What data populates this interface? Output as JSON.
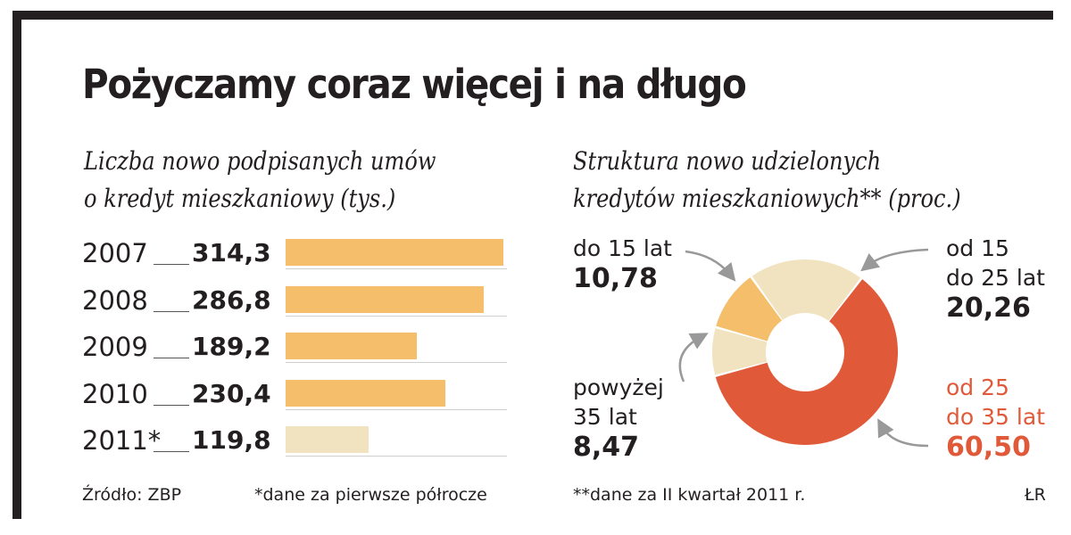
{
  "title": "Pożyczamy coraz więcej i na długo",
  "chart_data": [
    {
      "type": "bar",
      "orientation": "horizontal",
      "subtitle_lines": [
        "Liczba nowo podpisanych umów",
        "o kredyt mieszkaniowy (tys.)"
      ],
      "categories": [
        "2007",
        "2008",
        "2009",
        "2010",
        "2011*"
      ],
      "values": [
        314.3,
        286.8,
        189.2,
        230.4,
        119.8
      ],
      "value_labels": [
        "314,3",
        "286,8",
        "189,2",
        "230,4",
        "119,8"
      ],
      "xlim": [
        0,
        320
      ],
      "colors": [
        "#f4be6a",
        "#f4be6a",
        "#f4be6a",
        "#f4be6a",
        "#f1e3c0"
      ]
    },
    {
      "type": "pie",
      "style": "donut",
      "subtitle_lines": [
        "Struktura nowo udzielonych",
        "kredytów mieszkaniowych** (proc.)"
      ],
      "slices": [
        {
          "label_lines": [
            "do 15 lat"
          ],
          "value": 10.78,
          "value_label": "10,78",
          "color": "#f4be6a"
        },
        {
          "label_lines": [
            "od 15",
            "do 25 lat"
          ],
          "value": 20.26,
          "value_label": "20,26",
          "color": "#f1e3c0"
        },
        {
          "label_lines": [
            "od 25",
            "do 35 lat"
          ],
          "value": 60.5,
          "value_label": "60,50",
          "color": "#e05a3a"
        },
        {
          "label_lines": [
            "powyżej",
            "35 lat"
          ],
          "value": 8.47,
          "value_label": "8,47",
          "color": "#f1e3c0"
        }
      ]
    }
  ],
  "footer": {
    "source": "Źródło: ZBP",
    "note1": "*dane za pierwsze półrocze",
    "note2": "**dane za II kwartał 2011 r.",
    "author": "ŁR"
  }
}
